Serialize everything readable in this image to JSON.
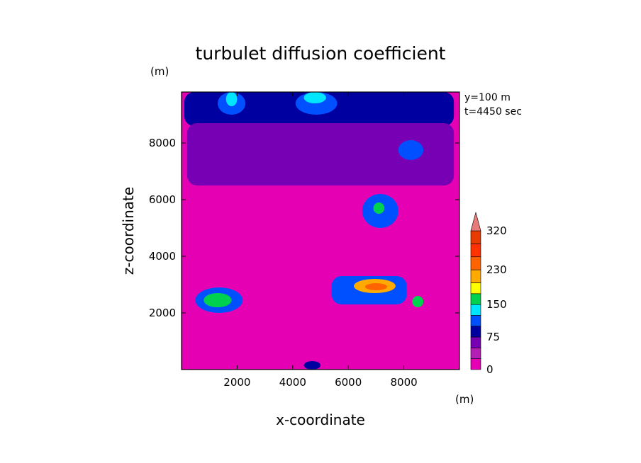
{
  "chart_data": {
    "type": "heatmap",
    "title": "turbulet diffusion coefficient",
    "xlabel": "x-coordinate",
    "ylabel": "z-coordinate",
    "x_unit": "(m)",
    "y_unit": "(m)",
    "annotations": [
      "y=100 m",
      "t=4450 sec"
    ],
    "xlim": [
      0,
      10000
    ],
    "ylim": [
      0,
      9800
    ],
    "xticks": [
      2000,
      4000,
      6000,
      8000
    ],
    "yticks": [
      2000,
      4000,
      6000,
      8000
    ],
    "xtick_labels": [
      "2000",
      "4000",
      "6000",
      "8000"
    ],
    "ytick_labels": [
      "2000",
      "4000",
      "6000",
      "8000"
    ],
    "colorbar": {
      "levels": [
        0,
        25,
        50,
        75,
        100,
        125,
        150,
        175,
        200,
        230,
        260,
        290,
        320
      ],
      "labels": [
        "0",
        "75",
        "150",
        "230",
        "320"
      ],
      "label_values": [
        0,
        75,
        150,
        230,
        320
      ],
      "colors": [
        "#e600b4",
        "#b41eb4",
        "#7800b4",
        "#0000a0",
        "#0050ff",
        "#00e6ff",
        "#00d250",
        "#ffff00",
        "#ffaa00",
        "#ff6400",
        "#ff3200",
        "#e63c00"
      ],
      "extend": "max",
      "extend_color": "#e87a7a"
    },
    "regions": [
      {
        "name": "top-band",
        "level": 3,
        "x": [
          100,
          9800
        ],
        "z": [
          8600,
          9800
        ]
      },
      {
        "name": "upper-purple",
        "level": 2,
        "x": [
          200,
          9800
        ],
        "z": [
          6500,
          8700
        ]
      },
      {
        "name": "upper-left-blob",
        "level": 4,
        "x": [
          1300,
          2300
        ],
        "z": [
          9000,
          9800
        ]
      },
      {
        "name": "upper-left-core",
        "level": 5,
        "x": [
          1600,
          2000
        ],
        "z": [
          9300,
          9800
        ]
      },
      {
        "name": "upper-mid-blob",
        "level": 4,
        "x": [
          4100,
          5600
        ],
        "z": [
          9000,
          9800
        ]
      },
      {
        "name": "upper-mid-core",
        "level": 5,
        "x": [
          4400,
          5200
        ],
        "z": [
          9400,
          9800
        ]
      },
      {
        "name": "upper-right-blob",
        "level": 4,
        "x": [
          7800,
          8700
        ],
        "z": [
          7400,
          8100
        ]
      },
      {
        "name": "mid-right-blob",
        "level": 4,
        "x": [
          6500,
          7800
        ],
        "z": [
          5000,
          6200
        ]
      },
      {
        "name": "mid-right-core",
        "level": 6,
        "x": [
          6900,
          7300
        ],
        "z": [
          5500,
          5900
        ]
      },
      {
        "name": "left-low-blob",
        "level": 4,
        "x": [
          500,
          2200
        ],
        "z": [
          2000,
          2900
        ]
      },
      {
        "name": "left-low-core",
        "level": 6,
        "x": [
          800,
          1800
        ],
        "z": [
          2200,
          2700
        ]
      },
      {
        "name": "center-band",
        "level": 4,
        "x": [
          5400,
          8100
        ],
        "z": [
          2300,
          3300
        ]
      },
      {
        "name": "center-hot",
        "level": 8,
        "x": [
          6200,
          7700
        ],
        "z": [
          2700,
          3200
        ]
      },
      {
        "name": "center-peak",
        "level": 9,
        "x": [
          6600,
          7400
        ],
        "z": [
          2800,
          3050
        ]
      },
      {
        "name": "right-small",
        "level": 6,
        "x": [
          8300,
          8700
        ],
        "z": [
          2200,
          2600
        ]
      },
      {
        "name": "bottom-blob",
        "level": 3,
        "x": [
          4400,
          5000
        ],
        "z": [
          0,
          300
        ]
      }
    ]
  }
}
